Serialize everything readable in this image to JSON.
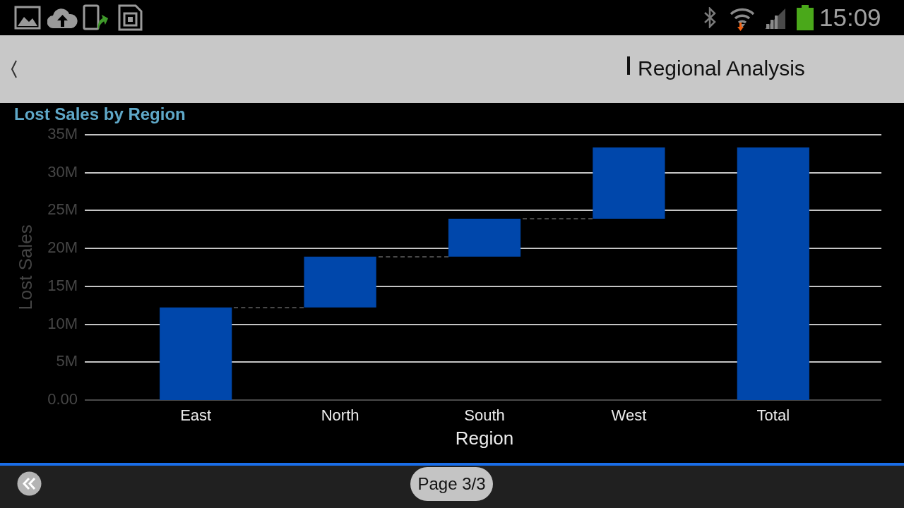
{
  "chart_data": {
    "type": "bar",
    "title": "Lost Sales by Region",
    "xlabel": "Region",
    "ylabel": "Lost Sales",
    "categories": [
      "East",
      "North",
      "South",
      "West",
      "Total"
    ],
    "values": [
      12.2,
      6.7,
      5.0,
      9.4,
      33.3
    ],
    "base": [
      0,
      12.2,
      18.9,
      23.9,
      0
    ],
    "color": "#0047ab",
    "ylim": [
      0,
      35
    ],
    "yticks": [
      {
        "value": 0,
        "label": "0.00"
      },
      {
        "value": 5,
        "label": "5M"
      },
      {
        "value": 10,
        "label": "10M"
      },
      {
        "value": 15,
        "label": "15M"
      },
      {
        "value": 20,
        "label": "20M"
      },
      {
        "value": 25,
        "label": "25M"
      },
      {
        "value": 30,
        "label": "30M"
      },
      {
        "value": 35,
        "label": "35M"
      }
    ],
    "grid": "y",
    "annotations": [
      "Regional Analysis",
      "Page 3/3",
      "15:09"
    ]
  }
}
